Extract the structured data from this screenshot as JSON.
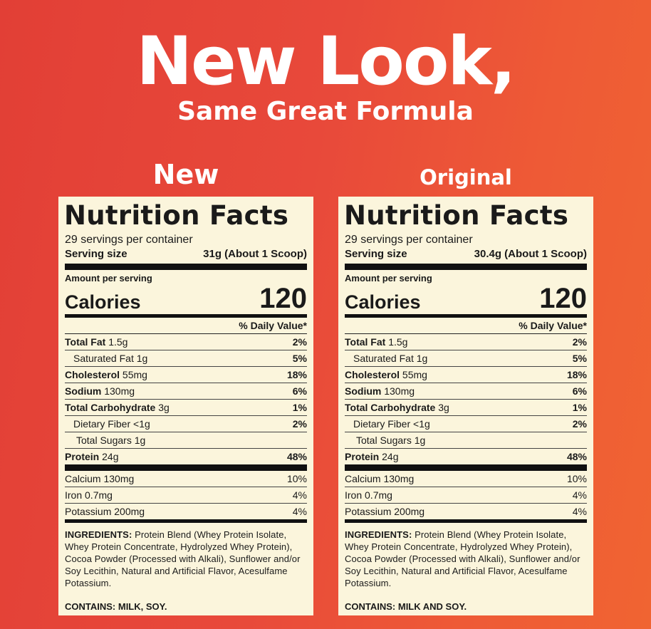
{
  "headline": "New Look,",
  "subhead": "Same Great Formula",
  "panels": {
    "new": {
      "label": "New",
      "title": "Nutrition Facts",
      "servings": "29 servings per container",
      "serving_size_label": "Serving size",
      "serving_size_value": "31g (About 1 Scoop)",
      "amount_per_serving": "Amount per serving",
      "calories_label": "Calories",
      "calories_value": "120",
      "daily_value_header": "% Daily Value*",
      "nutrients": [
        {
          "name": "Total Fat",
          "amount": "1.5g",
          "pct": "2%"
        },
        {
          "name": "Saturated Fat",
          "amount": "1g",
          "pct": "5%"
        },
        {
          "name": "Cholesterol",
          "amount": "55mg",
          "pct": "18%"
        },
        {
          "name": "Sodium",
          "amount": "130mg",
          "pct": "6%"
        },
        {
          "name": "Total Carbohydrate",
          "amount": "3g",
          "pct": "1%"
        },
        {
          "name": "Dietary Fiber",
          "amount": "<1g",
          "pct": "2%"
        },
        {
          "name": "Total Sugars",
          "amount": "1g",
          "pct": ""
        },
        {
          "name": "Protein",
          "amount": "24g",
          "pct": "48%"
        }
      ],
      "minerals": [
        {
          "name": "Calcium",
          "amount": "130mg",
          "pct": "10%"
        },
        {
          "name": "Iron",
          "amount": "0.7mg",
          "pct": "4%"
        },
        {
          "name": "Potassium",
          "amount": "200mg",
          "pct": "4%"
        }
      ],
      "ingredients_label": "INGREDIENTS:",
      "ingredients_text": "Protein Blend (Whey Protein Isolate, Whey Protein Concentrate, Hydrolyzed Whey Protein), Cocoa Powder (Processed with Alkali), Sunflower and/or Soy Lecithin, Natural and Artificial Flavor, Acesulfame Potassium.",
      "contains": "CONTAINS: MILK, SOY."
    },
    "original": {
      "label": "Original",
      "title": "Nutrition Facts",
      "servings": "29 servings per container",
      "serving_size_label": "Serving size",
      "serving_size_value": "30.4g (About 1 Scoop)",
      "amount_per_serving": "Amount per serving",
      "calories_label": "Calories",
      "calories_value": "120",
      "daily_value_header": "% Daily Value*",
      "nutrients": [
        {
          "name": "Total Fat",
          "amount": "1.5g",
          "pct": "2%"
        },
        {
          "name": "Saturated Fat",
          "amount": "1g",
          "pct": "5%"
        },
        {
          "name": "Cholesterol",
          "amount": "55mg",
          "pct": "18%"
        },
        {
          "name": "Sodium",
          "amount": "130mg",
          "pct": "6%"
        },
        {
          "name": "Total Carbohydrate",
          "amount": "3g",
          "pct": "1%"
        },
        {
          "name": "Dietary Fiber",
          "amount": "<1g",
          "pct": "2%"
        },
        {
          "name": "Total Sugars",
          "amount": "1g",
          "pct": ""
        },
        {
          "name": "Protein",
          "amount": "24g",
          "pct": "48%"
        }
      ],
      "minerals": [
        {
          "name": "Calcium",
          "amount": "130mg",
          "pct": "10%"
        },
        {
          "name": "Iron",
          "amount": "0.7mg",
          "pct": "4%"
        },
        {
          "name": "Potassium",
          "amount": "200mg",
          "pct": "4%"
        }
      ],
      "ingredients_label": "INGREDIENTS:",
      "ingredients_text": "Protein Blend (Whey Protein Isolate, Whey Protein Concentrate, Hydrolyzed Whey Protein), Cocoa Powder (Processed with Alkali), Sunflower and/or Soy Lecithin, Natural and Artificial Flavor, Acesulfame Potassium.",
      "contains": "CONTAINS: MILK AND SOY."
    }
  },
  "colors": {
    "background_start": "#e23f36",
    "background_end": "#f06432",
    "label_background": "#fbf5dc",
    "text": "#1a1a1a"
  }
}
